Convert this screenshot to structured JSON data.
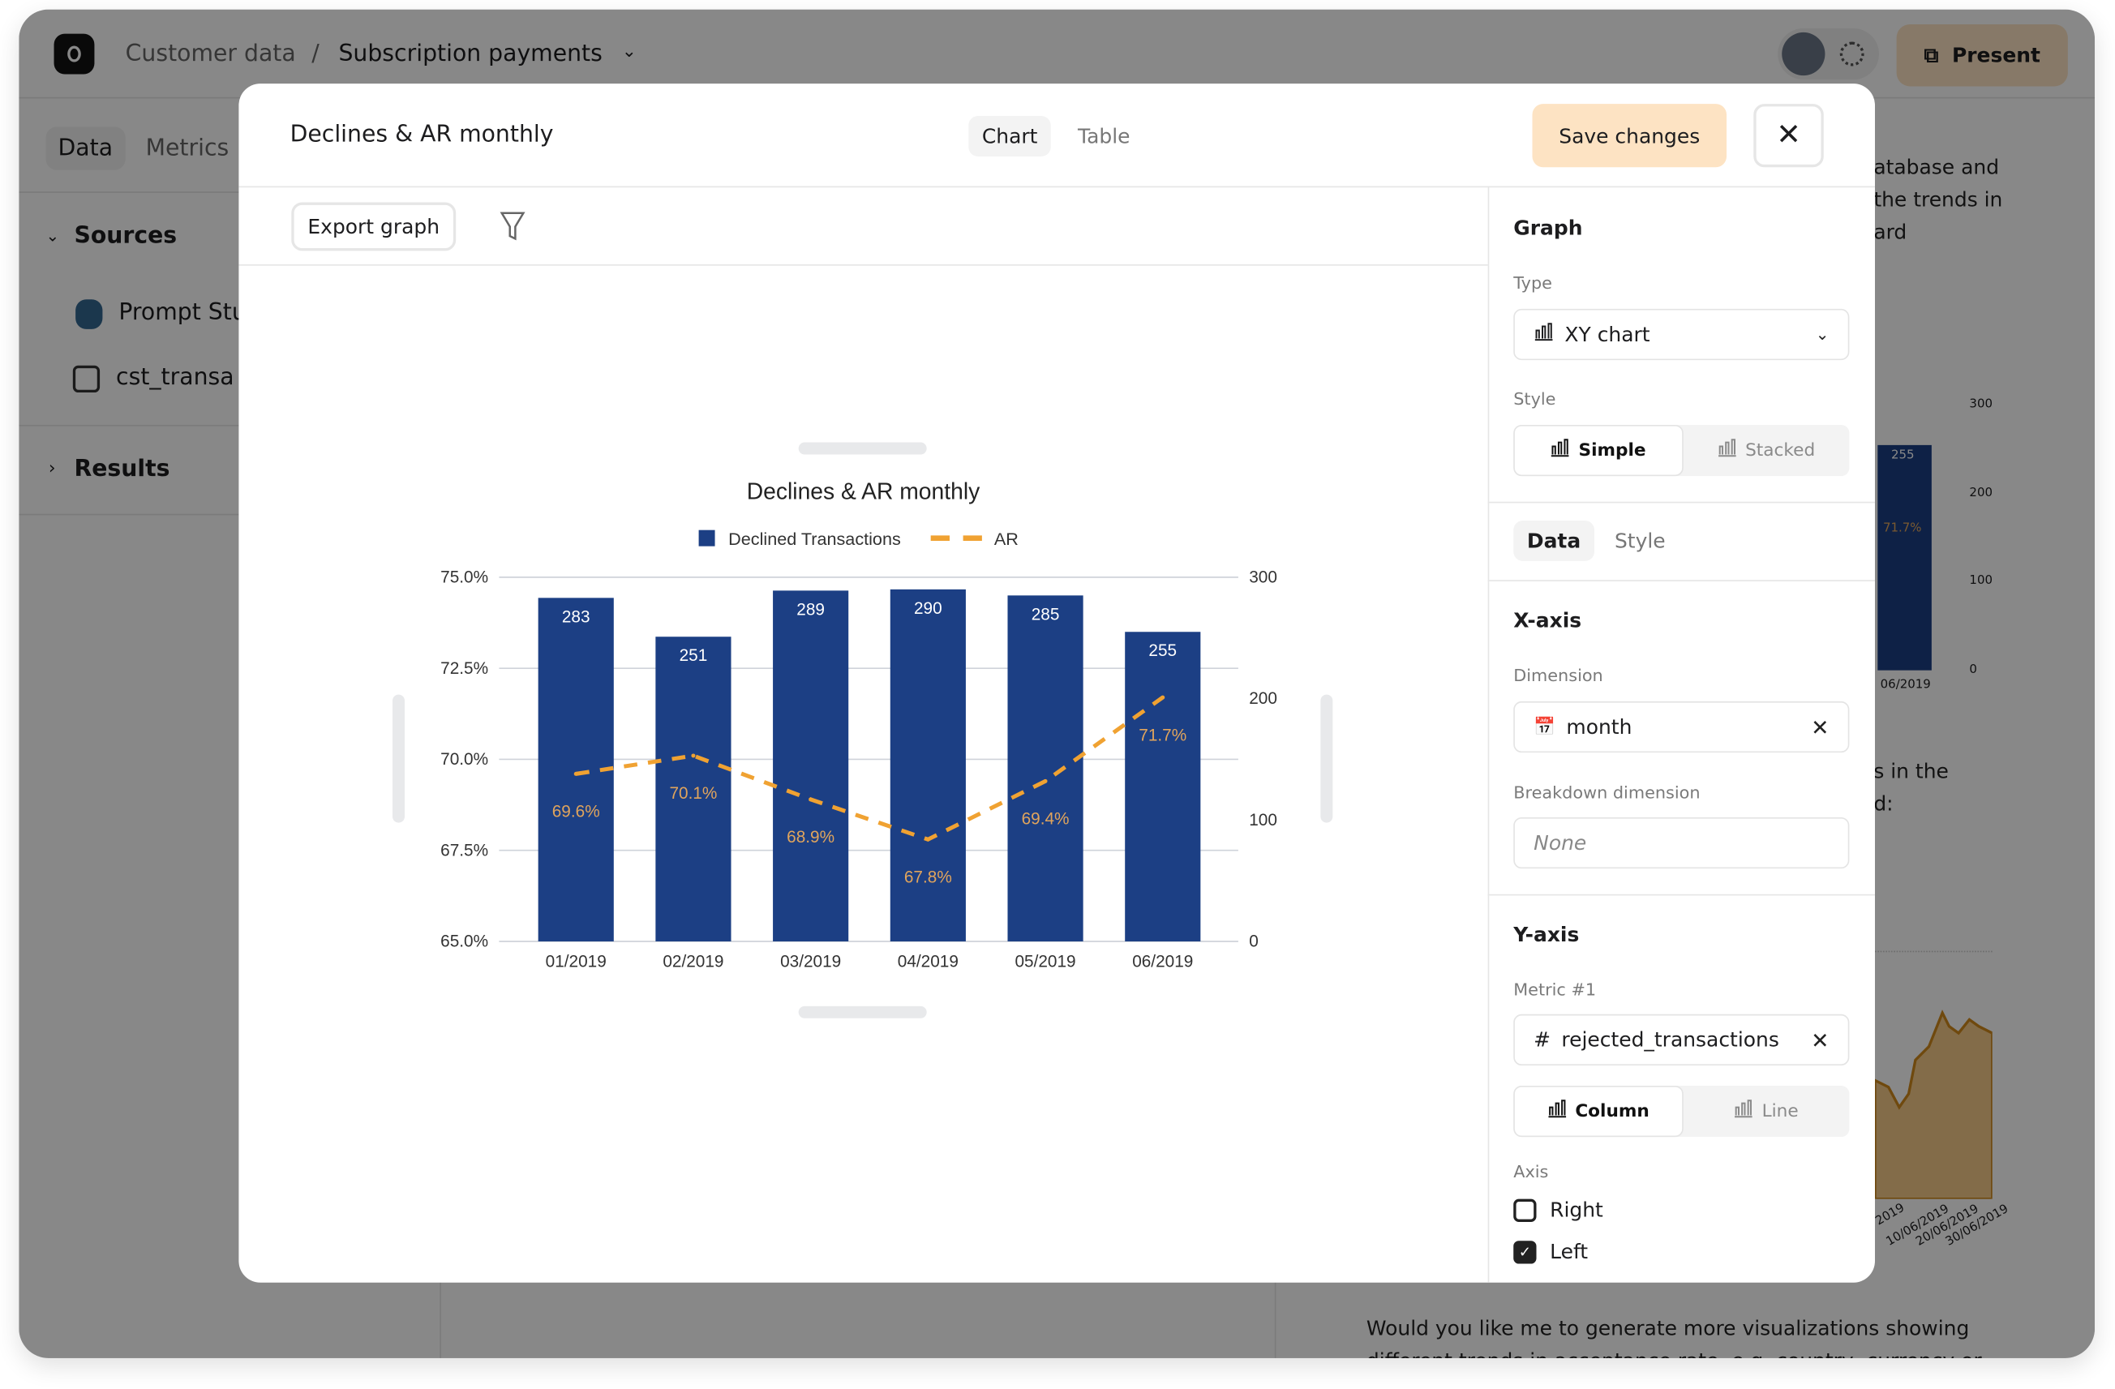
{
  "topbar": {
    "breadcrumb_parent": "Customer data",
    "separator": "/",
    "breadcrumb_current": "Subscription payments",
    "present_label": "Present"
  },
  "sidebar": {
    "tabs": [
      {
        "label": "Data",
        "active": true
      },
      {
        "label": "Metrics"
      }
    ],
    "sources_label": "Sources",
    "items": [
      {
        "label": "Prompt Stu",
        "icon": "postgres-icon"
      },
      {
        "label": "cst_transa",
        "icon": "table-icon"
      }
    ],
    "results_label": "Results"
  },
  "background": {
    "text_lines": [
      "atabase and",
      "the trends in",
      "ard"
    ],
    "text_lines2": [
      "s in the",
      "d:"
    ],
    "bottom_text": [
      "Would you like me to generate more visualizations showing",
      "different trends in acceptance rate, e.g. country, currency or"
    ],
    "mini_chart": {
      "y_ticks": [
        "300",
        "200",
        "100",
        "0"
      ],
      "bar_value": "255",
      "line_label": "71.7%",
      "x_label": "06/2019"
    },
    "area_dates": [
      "2019",
      "10/06/2019",
      "20/06/2019",
      "30/06/2019"
    ]
  },
  "modal": {
    "title": "Declines & AR monthly",
    "view_tabs": [
      {
        "label": "Chart",
        "active": true
      },
      {
        "label": "Table"
      }
    ],
    "save_label": "Save changes",
    "export_label": "Export graph",
    "panel": {
      "graph_heading": "Graph",
      "type_label": "Type",
      "type_value": "XY chart",
      "style_label": "Style",
      "style_options": [
        {
          "label": "Simple",
          "active": true
        },
        {
          "label": "Stacked"
        }
      ],
      "tabs": [
        {
          "label": "Data",
          "active": true
        },
        {
          "label": "Style"
        }
      ],
      "xaxis_heading": "X-axis",
      "dimension_label": "Dimension",
      "dimension_value": "month",
      "breakdown_label": "Breakdown dimension",
      "breakdown_placeholder": "None",
      "yaxis_heading": "Y-axis",
      "metric_label": "Metric #1",
      "metric_value": "rejected_transactions",
      "metric_type_options": [
        {
          "label": "Column",
          "active": true
        },
        {
          "label": "Line"
        }
      ],
      "axis_label": "Axis",
      "axis_options": [
        {
          "label": "Right",
          "checked": false
        },
        {
          "label": "Left",
          "checked": true
        }
      ]
    }
  },
  "chart_data": {
    "type": "bar",
    "title": "Declines & AR monthly",
    "categories": [
      "01/2019",
      "02/2019",
      "03/2019",
      "04/2019",
      "05/2019",
      "06/2019"
    ],
    "series": [
      {
        "name": "Declined Transactions",
        "type": "bar",
        "axis": "right",
        "values": [
          283,
          251,
          289,
          290,
          285,
          255
        ],
        "labels": [
          "283",
          "251",
          "289",
          "290",
          "285",
          "255"
        ],
        "color": "#1c3f84"
      },
      {
        "name": "AR",
        "type": "line",
        "style": "dashed",
        "axis": "left",
        "values": [
          69.6,
          70.1,
          68.9,
          67.8,
          69.4,
          71.7
        ],
        "labels": [
          "69.6%",
          "70.1%",
          "68.9%",
          "67.8%",
          "69.4%",
          "71.7%"
        ],
        "color": "#f0a232"
      }
    ],
    "left_axis": {
      "range": [
        65,
        75
      ],
      "ticks": [
        "65.0%",
        "67.5%",
        "70.0%",
        "72.5%",
        "75.0%"
      ]
    },
    "right_axis": {
      "range": [
        0,
        300
      ],
      "ticks": [
        "0",
        "100",
        "200",
        "300"
      ]
    },
    "grid": true,
    "legend": "top"
  }
}
